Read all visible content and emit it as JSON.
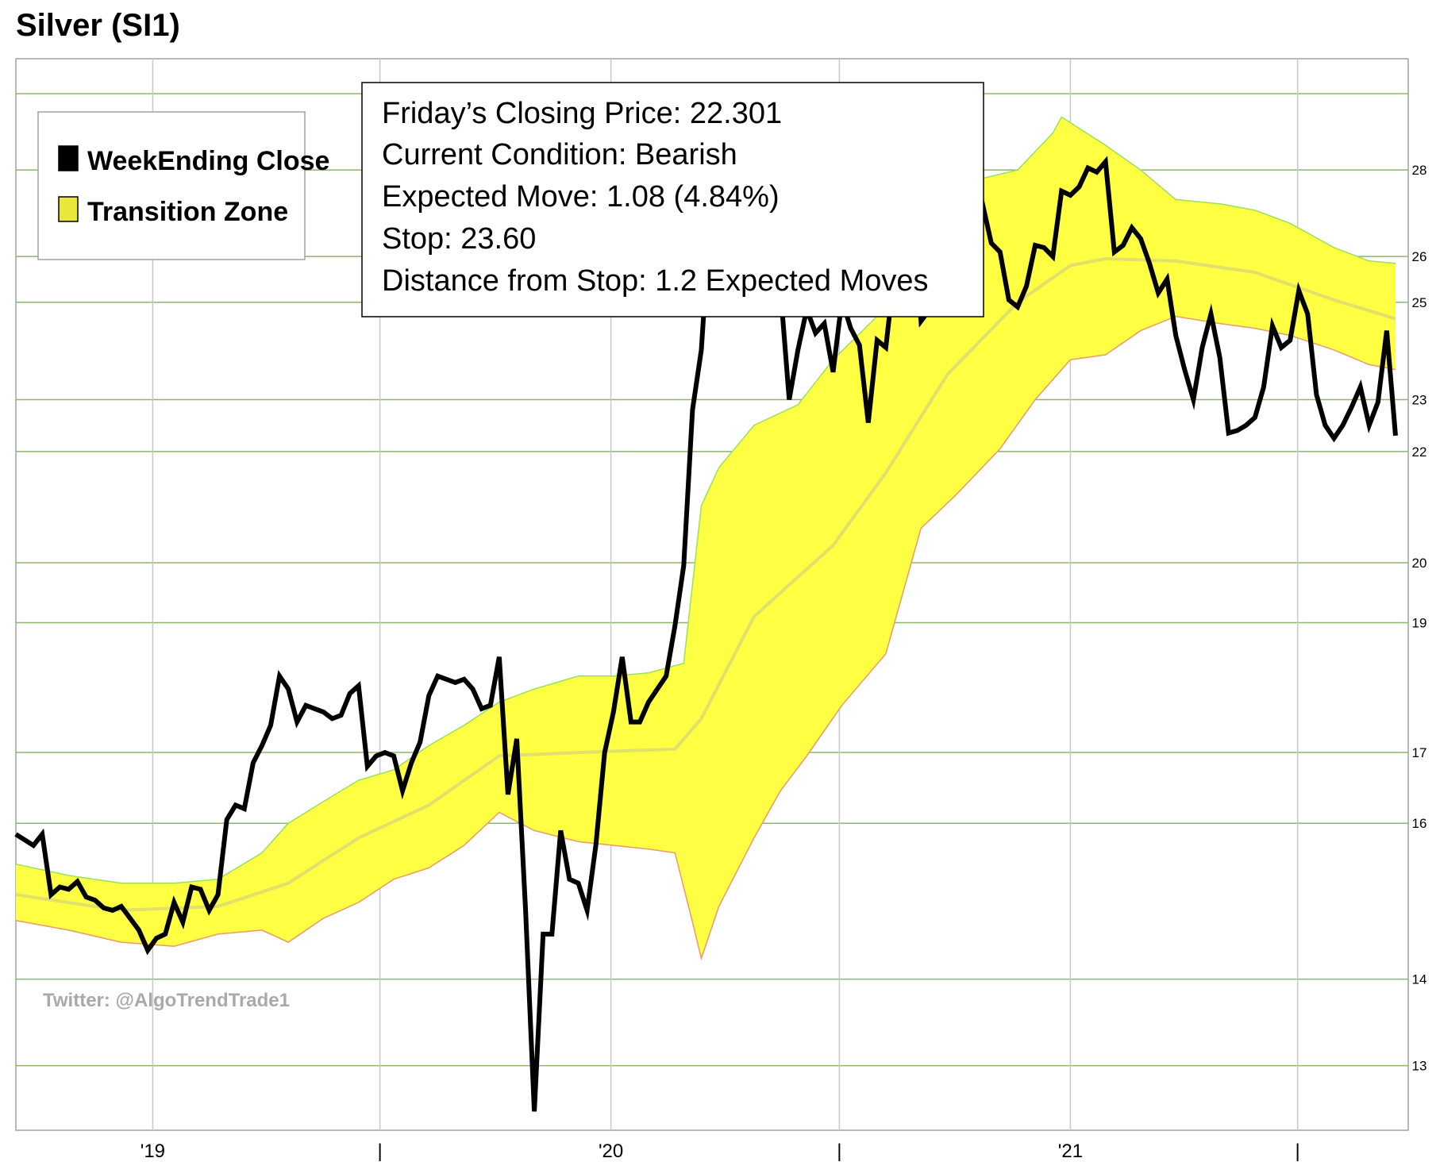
{
  "chart_data": {
    "type": "line",
    "title": "Silver (SI1)",
    "xlabel": "",
    "ylabel": "",
    "ylim": [
      12.3,
      30.8
    ],
    "y_scale": "log",
    "y_ticks": [
      13,
      14,
      16,
      17,
      19,
      20,
      22,
      23,
      25,
      26,
      28
    ],
    "x_ticks": [
      {
        "label": "'19",
        "x": "2019-01-01"
      },
      {
        "label": "|",
        "x": "2019-07-01"
      },
      {
        "label": "'20",
        "x": "2020-01-01"
      },
      {
        "label": "|",
        "x": "2020-07-01"
      },
      {
        "label": "'21",
        "x": "2021-01-01"
      },
      {
        "label": "|",
        "x": "2021-07-01"
      }
    ],
    "grid": true,
    "legend": {
      "placement": "top-left",
      "entries": [
        {
          "name": "WeekEnding Close",
          "color": "#000000"
        },
        {
          "name": "Transition Zone",
          "color": "#e8e838"
        }
      ]
    },
    "annotations": {
      "info_lines": [
        "Friday’s Closing Price: 22.301",
        "Current Condition: Bearish",
        "Expected Move: 1.08 (4.84%)",
        "Stop: 23.60",
        "Distance from Stop: 1.2 Expected Moves"
      ],
      "watermark": "Twitter: @AlgoTrendTrade1"
    },
    "series": [
      {
        "name": "WeekEnding Close",
        "color": "#000000",
        "points": [
          [
            "2018-09-14",
            15.85
          ],
          [
            "2018-09-28",
            15.7
          ],
          [
            "2018-10-05",
            15.85
          ],
          [
            "2018-10-12",
            15.05
          ],
          [
            "2018-10-19",
            15.15
          ],
          [
            "2018-10-26",
            15.12
          ],
          [
            "2018-11-02",
            15.22
          ],
          [
            "2018-11-09",
            15.02
          ],
          [
            "2018-11-16",
            14.98
          ],
          [
            "2018-11-23",
            14.88
          ],
          [
            "2018-11-30",
            14.85
          ],
          [
            "2018-12-07",
            14.9
          ],
          [
            "2018-12-14",
            14.75
          ],
          [
            "2018-12-21",
            14.6
          ],
          [
            "2018-12-28",
            14.35
          ],
          [
            "2019-01-04",
            14.5
          ],
          [
            "2019-01-11",
            14.55
          ],
          [
            "2019-01-18",
            14.95
          ],
          [
            "2019-01-25",
            14.7
          ],
          [
            "2019-02-01",
            15.15
          ],
          [
            "2019-02-08",
            15.12
          ],
          [
            "2019-02-15",
            14.85
          ],
          [
            "2019-02-22",
            15.05
          ],
          [
            "2019-03-01",
            16.05
          ],
          [
            "2019-03-08",
            16.25
          ],
          [
            "2019-03-15",
            16.2
          ],
          [
            "2019-03-22",
            16.85
          ],
          [
            "2019-03-29",
            17.1
          ],
          [
            "2019-04-05",
            17.4
          ],
          [
            "2019-04-12",
            18.15
          ],
          [
            "2019-04-19",
            17.95
          ],
          [
            "2019-04-26",
            17.45
          ],
          [
            "2019-05-03",
            17.7
          ],
          [
            "2019-05-10",
            17.65
          ],
          [
            "2019-05-17",
            17.6
          ],
          [
            "2019-05-24",
            17.5
          ],
          [
            "2019-05-31",
            17.55
          ],
          [
            "2019-06-07",
            17.88
          ],
          [
            "2019-06-14",
            18.0
          ],
          [
            "2019-06-21",
            16.8
          ],
          [
            "2019-06-28",
            16.95
          ],
          [
            "2019-07-05",
            17.0
          ],
          [
            "2019-07-12",
            16.95
          ],
          [
            "2019-07-19",
            16.45
          ],
          [
            "2019-07-26",
            16.85
          ],
          [
            "2019-08-02",
            17.15
          ],
          [
            "2019-08-09",
            17.85
          ],
          [
            "2019-08-16",
            18.15
          ],
          [
            "2019-08-23",
            18.1
          ],
          [
            "2019-08-30",
            18.05
          ],
          [
            "2019-09-06",
            18.1
          ],
          [
            "2019-09-13",
            17.95
          ],
          [
            "2019-09-20",
            17.65
          ],
          [
            "2019-09-27",
            17.7
          ],
          [
            "2019-10-04",
            18.45
          ],
          [
            "2019-10-11",
            16.4
          ],
          [
            "2019-10-18",
            17.2
          ],
          [
            "2019-10-25",
            14.85
          ],
          [
            "2019-11-01",
            12.5
          ],
          [
            "2019-11-08",
            14.55
          ],
          [
            "2019-11-15",
            14.55
          ],
          [
            "2019-11-22",
            15.9
          ],
          [
            "2019-11-29",
            15.25
          ],
          [
            "2019-12-06",
            15.2
          ],
          [
            "2019-12-13",
            14.85
          ],
          [
            "2019-12-20",
            15.7
          ],
          [
            "2019-12-27",
            17.0
          ],
          [
            "2020-01-03",
            17.6
          ],
          [
            "2020-01-10",
            18.45
          ],
          [
            "2020-01-17",
            17.45
          ],
          [
            "2020-01-24",
            17.45
          ],
          [
            "2020-01-31",
            17.75
          ],
          [
            "2020-02-07",
            17.95
          ],
          [
            "2020-02-14",
            18.15
          ],
          [
            "2020-02-21",
            18.95
          ],
          [
            "2020-02-28",
            19.95
          ],
          [
            "2020-03-06",
            22.8
          ],
          [
            "2020-03-13",
            24.0
          ],
          [
            "2020-03-20",
            26.9
          ],
          [
            "2020-03-27",
            27.3
          ],
          [
            "2020-04-03",
            26.6
          ],
          [
            "2020-04-10",
            25.0
          ],
          [
            "2020-04-17",
            26.1
          ],
          [
            "2020-04-24",
            27.4
          ],
          [
            "2020-05-01",
            26.4
          ],
          [
            "2020-05-08",
            26.9
          ],
          [
            "2020-05-15",
            25.3
          ],
          [
            "2020-05-22",
            23.0
          ],
          [
            "2020-05-29",
            24.0
          ],
          [
            "2020-06-05",
            24.85
          ],
          [
            "2020-06-12",
            24.35
          ],
          [
            "2020-06-19",
            24.55
          ],
          [
            "2020-06-26",
            23.55
          ],
          [
            "2020-07-03",
            25.05
          ],
          [
            "2020-07-10",
            24.45
          ],
          [
            "2020-07-17",
            24.1
          ],
          [
            "2020-07-24",
            22.55
          ],
          [
            "2020-07-31",
            24.2
          ],
          [
            "2020-08-07",
            24.05
          ],
          [
            "2020-08-14",
            25.7
          ],
          [
            "2020-08-21",
            26.9
          ],
          [
            "2020-08-28",
            27.1
          ],
          [
            "2020-09-04",
            24.6
          ],
          [
            "2020-09-11",
            24.85
          ],
          [
            "2020-09-18",
            26.5
          ],
          [
            "2020-09-25",
            26.2
          ],
          [
            "2020-10-02",
            27.15
          ],
          [
            "2020-10-09",
            26.7
          ],
          [
            "2020-10-16",
            26.8
          ],
          [
            "2020-10-23",
            27.2
          ],
          [
            "2020-10-30",
            26.3
          ],
          [
            "2020-11-06",
            26.1
          ],
          [
            "2020-11-13",
            25.05
          ],
          [
            "2020-11-20",
            24.9
          ],
          [
            "2020-11-27",
            25.35
          ],
          [
            "2020-12-04",
            26.25
          ],
          [
            "2020-12-11",
            26.2
          ],
          [
            "2020-12-18",
            26.0
          ],
          [
            "2020-12-25",
            27.5
          ],
          [
            "2021-01-01",
            27.4
          ],
          [
            "2021-01-08",
            27.6
          ],
          [
            "2021-01-15",
            28.05
          ],
          [
            "2021-01-22",
            27.95
          ],
          [
            "2021-01-29",
            28.2
          ],
          [
            "2021-02-05",
            26.1
          ],
          [
            "2021-02-12",
            26.25
          ],
          [
            "2021-02-19",
            26.65
          ],
          [
            "2021-02-26",
            26.4
          ],
          [
            "2021-03-05",
            25.85
          ],
          [
            "2021-03-12",
            25.2
          ],
          [
            "2021-03-19",
            25.5
          ],
          [
            "2021-03-26",
            24.3
          ],
          [
            "2021-04-02",
            23.6
          ],
          [
            "2021-04-09",
            23.0
          ],
          [
            "2021-04-16",
            24.05
          ],
          [
            "2021-04-23",
            24.75
          ],
          [
            "2021-04-30",
            23.85
          ],
          [
            "2021-05-07",
            22.35
          ],
          [
            "2021-05-14",
            22.4
          ],
          [
            "2021-05-21",
            22.5
          ],
          [
            "2021-05-28",
            22.65
          ],
          [
            "2021-06-04",
            23.25
          ],
          [
            "2021-06-11",
            24.5
          ],
          [
            "2021-06-18",
            24.05
          ],
          [
            "2021-06-25",
            24.2
          ],
          [
            "2021-07-02",
            25.25
          ],
          [
            "2021-07-09",
            24.75
          ],
          [
            "2021-07-16",
            23.1
          ],
          [
            "2021-07-23",
            22.5
          ],
          [
            "2021-07-30",
            22.25
          ],
          [
            "2021-08-06",
            22.5
          ],
          [
            "2021-08-13",
            22.85
          ],
          [
            "2021-08-20",
            23.25
          ],
          [
            "2021-08-27",
            22.5
          ],
          [
            "2021-09-03",
            22.95
          ],
          [
            "2021-09-10",
            24.4
          ],
          [
            "2021-09-17",
            22.3
          ]
        ]
      },
      {
        "name": "Transition Zone",
        "color": "#ffff44",
        "note_upper_lower": "upper and lower band edges",
        "upper": [
          [
            "2018-09-14",
            15.45
          ],
          [
            "2018-10-26",
            15.3
          ],
          [
            "2018-12-07",
            15.2
          ],
          [
            "2019-01-18",
            15.2
          ],
          [
            "2019-02-22",
            15.25
          ],
          [
            "2019-03-29",
            15.6
          ],
          [
            "2019-04-19",
            16.0
          ],
          [
            "2019-05-17",
            16.3
          ],
          [
            "2019-06-14",
            16.6
          ],
          [
            "2019-07-12",
            16.75
          ],
          [
            "2019-08-09",
            17.1
          ],
          [
            "2019-09-06",
            17.4
          ],
          [
            "2019-10-04",
            17.75
          ],
          [
            "2019-11-01",
            17.95
          ],
          [
            "2019-12-06",
            18.15
          ],
          [
            "2020-01-03",
            18.15
          ],
          [
            "2020-01-31",
            18.2
          ],
          [
            "2020-02-28",
            18.35
          ],
          [
            "2020-03-13",
            21.0
          ],
          [
            "2020-03-27",
            21.7
          ],
          [
            "2020-04-24",
            22.5
          ],
          [
            "2020-05-29",
            22.9
          ],
          [
            "2020-06-26",
            23.8
          ],
          [
            "2020-07-31",
            24.7
          ],
          [
            "2020-08-28",
            25.7
          ],
          [
            "2020-09-25",
            27.2
          ],
          [
            "2020-10-23",
            27.8
          ],
          [
            "2020-11-20",
            28.0
          ],
          [
            "2020-12-18",
            28.9
          ],
          [
            "2020-12-25",
            29.3
          ],
          [
            "2021-01-29",
            28.6
          ],
          [
            "2021-02-26",
            28.0
          ],
          [
            "2021-03-26",
            27.3
          ],
          [
            "2021-04-30",
            27.2
          ],
          [
            "2021-05-28",
            27.05
          ],
          [
            "2021-06-25",
            26.75
          ],
          [
            "2021-07-30",
            26.2
          ],
          [
            "2021-08-27",
            25.9
          ],
          [
            "2021-09-17",
            25.85
          ]
        ],
        "lower": [
          [
            "2018-09-14",
            14.72
          ],
          [
            "2018-10-26",
            14.6
          ],
          [
            "2018-12-07",
            14.45
          ],
          [
            "2019-01-18",
            14.4
          ],
          [
            "2019-02-22",
            14.55
          ],
          [
            "2019-03-29",
            14.6
          ],
          [
            "2019-04-19",
            14.45
          ],
          [
            "2019-05-17",
            14.75
          ],
          [
            "2019-06-14",
            14.95
          ],
          [
            "2019-07-12",
            15.25
          ],
          [
            "2019-08-09",
            15.4
          ],
          [
            "2019-09-06",
            15.7
          ],
          [
            "2019-10-04",
            16.15
          ],
          [
            "2019-11-01",
            15.9
          ],
          [
            "2019-12-06",
            15.75
          ],
          [
            "2020-01-03",
            15.7
          ],
          [
            "2020-01-31",
            15.65
          ],
          [
            "2020-02-21",
            15.6
          ],
          [
            "2020-03-06",
            14.7
          ],
          [
            "2020-03-13",
            14.25
          ],
          [
            "2020-03-27",
            14.9
          ],
          [
            "2020-04-24",
            15.8
          ],
          [
            "2020-05-15",
            16.45
          ],
          [
            "2020-06-05",
            16.95
          ],
          [
            "2020-07-03",
            17.7
          ],
          [
            "2020-08-07",
            18.5
          ],
          [
            "2020-09-04",
            20.6
          ],
          [
            "2020-10-02",
            21.2
          ],
          [
            "2020-11-06",
            22.05
          ],
          [
            "2020-12-04",
            23.0
          ],
          [
            "2021-01-01",
            23.8
          ],
          [
            "2021-01-29",
            23.9
          ],
          [
            "2021-02-26",
            24.4
          ],
          [
            "2021-03-26",
            24.7
          ],
          [
            "2021-04-30",
            24.55
          ],
          [
            "2021-05-28",
            24.45
          ],
          [
            "2021-06-25",
            24.3
          ],
          [
            "2021-07-30",
            24.0
          ],
          [
            "2021-08-27",
            23.7
          ],
          [
            "2021-09-17",
            23.6
          ]
        ],
        "mid": [
          [
            "2018-09-14",
            15.05
          ],
          [
            "2018-12-07",
            14.85
          ],
          [
            "2019-02-22",
            14.9
          ],
          [
            "2019-04-19",
            15.2
          ],
          [
            "2019-06-14",
            15.8
          ],
          [
            "2019-08-09",
            16.25
          ],
          [
            "2019-10-04",
            16.95
          ],
          [
            "2019-12-06",
            17.0
          ],
          [
            "2020-02-21",
            17.05
          ],
          [
            "2020-03-13",
            17.5
          ],
          [
            "2020-04-24",
            19.1
          ],
          [
            "2020-06-26",
            20.3
          ],
          [
            "2020-08-07",
            21.6
          ],
          [
            "2020-09-25",
            23.5
          ],
          [
            "2020-11-20",
            25.0
          ],
          [
            "2021-01-01",
            25.8
          ],
          [
            "2021-01-29",
            25.95
          ],
          [
            "2021-03-26",
            25.9
          ],
          [
            "2021-05-28",
            25.65
          ],
          [
            "2021-07-30",
            25.05
          ],
          [
            "2021-09-17",
            24.65
          ]
        ]
      }
    ]
  }
}
